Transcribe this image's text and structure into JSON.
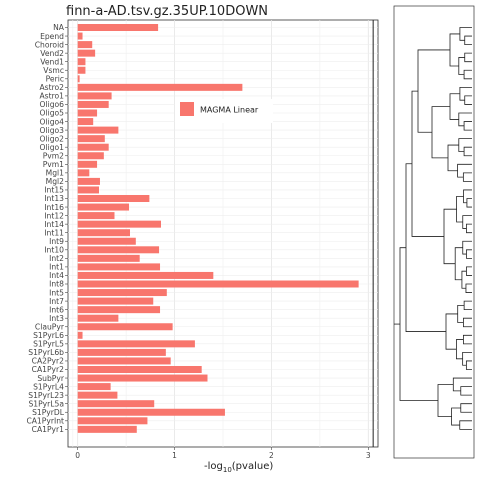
{
  "chart_data": {
    "type": "bar",
    "orientation": "horizontal",
    "title": "finn-a-AD.tsv.gz.35UP.10DOWN",
    "xlabel": "-log10(pvalue)",
    "xlabel_main": "-log",
    "xlabel_sub": "10",
    "xlabel_tail": "(pvalue)",
    "xlim": [
      -0.1,
      3.1
    ],
    "xticks": [
      0,
      1,
      2,
      3
    ],
    "threshold": 3.05,
    "bar_color": "#F8766D",
    "legend": {
      "label": "MAGMA Linear",
      "position": "upper-middle"
    },
    "grid": true,
    "categories": [
      "NA",
      "Epend",
      "Choroid",
      "Vend2",
      "Vend1",
      "Vsmc",
      "Peric",
      "Astro2",
      "Astro1",
      "Oligo6",
      "Oligo5",
      "Oligo4",
      "Oligo3",
      "Oligo2",
      "Oligo1",
      "Pvm2",
      "Pvm1",
      "Mgl1",
      "Mgl2",
      "Int15",
      "Int13",
      "Int16",
      "Int12",
      "Int14",
      "Int11",
      "Int9",
      "Int10",
      "Int2",
      "Int1",
      "Int4",
      "Int8",
      "Int5",
      "Int7",
      "Int6",
      "Int3",
      "ClauPyr",
      "S1PyrL6",
      "S1PyrL5",
      "S1PyrL6b",
      "CA2Pyr2",
      "CA1Pyr2",
      "SubPyr",
      "S1PyrL4",
      "S1PyrL23",
      "S1PyrL5a",
      "S1PyrDL",
      "CA1PyrInt",
      "CA1Pyr1"
    ],
    "values": [
      0.83,
      0.05,
      0.15,
      0.18,
      0.08,
      0.08,
      0.02,
      1.7,
      0.35,
      0.32,
      0.2,
      0.16,
      0.42,
      0.28,
      0.32,
      0.27,
      0.2,
      0.12,
      0.23,
      0.22,
      0.74,
      0.53,
      0.38,
      0.86,
      0.54,
      0.6,
      0.84,
      0.64,
      0.85,
      1.4,
      2.9,
      0.92,
      0.78,
      0.85,
      0.42,
      0.98,
      0.05,
      1.21,
      0.91,
      0.96,
      1.28,
      1.34,
      0.34,
      0.41,
      0.79,
      1.52,
      0.72,
      0.61
    ]
  }
}
